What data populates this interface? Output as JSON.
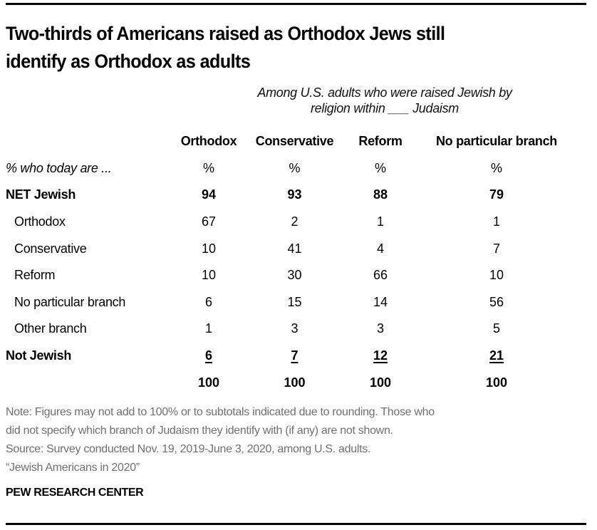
{
  "title_lines": [
    "Two-thirds of Americans raised as Orthodox Jews still",
    "identify as Orthodox as adults"
  ],
  "subtitle_lines": [
    "Among U.S. adults who were raised Jewish by",
    "religion within ___ Judaism"
  ],
  "chart_data": {
    "type": "table",
    "title": "Two-thirds of Americans raised as Orthodox Jews still identify as Orthodox as adults",
    "subtitle": "Among U.S. adults who were raised Jewish by religion within ___ Judaism",
    "columns": [
      "Orthodox",
      "Conservative",
      "Reform",
      "No particular branch"
    ],
    "unit_row": {
      "label": "% who today are ...",
      "values": [
        "%",
        "%",
        "%",
        "%"
      ]
    },
    "rows": [
      {
        "label": "NET Jewish",
        "values": [
          94,
          93,
          88,
          79
        ],
        "style": "bold"
      },
      {
        "label": "Orthodox",
        "values": [
          67,
          2,
          1,
          1
        ],
        "style": "indent"
      },
      {
        "label": "Conservative",
        "values": [
          10,
          41,
          4,
          7
        ],
        "style": "indent"
      },
      {
        "label": "Reform",
        "values": [
          10,
          30,
          66,
          10
        ],
        "style": "indent"
      },
      {
        "label": "No particular branch",
        "values": [
          6,
          15,
          14,
          56
        ],
        "style": "indent"
      },
      {
        "label": "Other branch",
        "values": [
          1,
          3,
          3,
          5
        ],
        "style": "indent"
      },
      {
        "label": "Not Jewish",
        "values": [
          6,
          7,
          12,
          21
        ],
        "style": "bold-underline"
      },
      {
        "label": "",
        "values": [
          100,
          100,
          100,
          100
        ],
        "style": "total"
      }
    ]
  },
  "notes": [
    "Note: Figures may not add to 100% or to subtotals indicated due to rounding. Those who",
    "did not specify which branch of Judaism they identify with (if any) are not shown.",
    "Source: Survey conducted Nov. 19, 2019-June 3, 2020, among U.S. adults.",
    "“Jewish Americans in 2020”"
  ],
  "brand": "PEW RESEARCH CENTER"
}
